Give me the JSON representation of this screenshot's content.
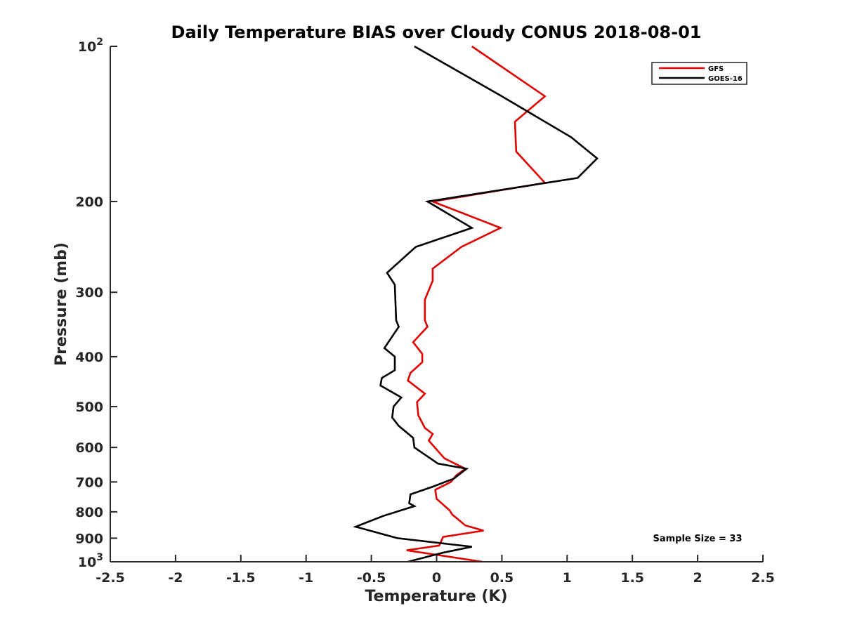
{
  "chart_data": {
    "type": "line",
    "title": "Daily Temperature BIAS over Cloudy CONUS 2018-08-01",
    "xlabel": "Temperature (K)",
    "ylabel": "Pressure (mb)",
    "xlim": [
      -2.5,
      2.5
    ],
    "ylim": [
      100,
      1000
    ],
    "y_scale": "log",
    "y_reversed": true,
    "x_ticks": [
      -2.5,
      -2,
      -1.5,
      -1,
      -0.5,
      0,
      0.5,
      1,
      1.5,
      2,
      2.5
    ],
    "x_tick_labels": [
      "-2.5",
      "-2",
      "-1.5",
      "-1",
      "-0.5",
      "0",
      "0.5",
      "1",
      "1.5",
      "2",
      "2.5"
    ],
    "y_ticks": [
      {
        "value": 100,
        "base": "10",
        "exp": "2",
        "label": ""
      },
      {
        "value": 200,
        "base": "",
        "exp": "",
        "label": "200"
      },
      {
        "value": 300,
        "base": "",
        "exp": "",
        "label": "300"
      },
      {
        "value": 400,
        "base": "",
        "exp": "",
        "label": "400"
      },
      {
        "value": 500,
        "base": "",
        "exp": "",
        "label": "500"
      },
      {
        "value": 600,
        "base": "",
        "exp": "",
        "label": "600"
      },
      {
        "value": 700,
        "base": "",
        "exp": "",
        "label": "700"
      },
      {
        "value": 800,
        "base": "",
        "exp": "",
        "label": "800"
      },
      {
        "value": 900,
        "base": "",
        "exp": "",
        "label": "900"
      },
      {
        "value": 1000,
        "base": "10",
        "exp": "3",
        "label": ""
      }
    ],
    "grid": false,
    "legend_position": "top-right",
    "series": [
      {
        "name": "GFS",
        "color": "#e00000",
        "points": [
          {
            "x": 0.27,
            "y": 100
          },
          {
            "x": 0.83,
            "y": 125
          },
          {
            "x": 0.6,
            "y": 140
          },
          {
            "x": 0.61,
            "y": 160
          },
          {
            "x": 0.83,
            "y": 184
          },
          {
            "x": -0.03,
            "y": 200
          },
          {
            "x": 0.49,
            "y": 225
          },
          {
            "x": 0.19,
            "y": 245
          },
          {
            "x": -0.03,
            "y": 270
          },
          {
            "x": -0.03,
            "y": 285
          },
          {
            "x": -0.09,
            "y": 310
          },
          {
            "x": -0.09,
            "y": 340
          },
          {
            "x": -0.07,
            "y": 350
          },
          {
            "x": -0.18,
            "y": 375
          },
          {
            "x": -0.11,
            "y": 395
          },
          {
            "x": -0.11,
            "y": 410
          },
          {
            "x": -0.2,
            "y": 430
          },
          {
            "x": -0.22,
            "y": 445
          },
          {
            "x": -0.09,
            "y": 472
          },
          {
            "x": -0.15,
            "y": 490
          },
          {
            "x": -0.14,
            "y": 520
          },
          {
            "x": -0.09,
            "y": 550
          },
          {
            "x": -0.03,
            "y": 565
          },
          {
            "x": -0.06,
            "y": 582
          },
          {
            "x": 0.06,
            "y": 630
          },
          {
            "x": 0.22,
            "y": 660
          },
          {
            "x": 0.15,
            "y": 680
          },
          {
            "x": 0.11,
            "y": 700
          },
          {
            "x": -0.01,
            "y": 725
          },
          {
            "x": 0,
            "y": 755
          },
          {
            "x": 0.1,
            "y": 795
          },
          {
            "x": 0.12,
            "y": 810
          },
          {
            "x": 0.22,
            "y": 850
          },
          {
            "x": 0.36,
            "y": 870
          },
          {
            "x": 0.05,
            "y": 895
          },
          {
            "x": 0.02,
            "y": 930
          },
          {
            "x": -0.23,
            "y": 950
          },
          {
            "x": 0.35,
            "y": 1000
          }
        ]
      },
      {
        "name": "GOES-16",
        "color": "#000000",
        "points": [
          {
            "x": -0.17,
            "y": 100
          },
          {
            "x": 0.5,
            "y": 125
          },
          {
            "x": 1.03,
            "y": 150
          },
          {
            "x": 1.23,
            "y": 165
          },
          {
            "x": 1.08,
            "y": 180
          },
          {
            "x": -0.07,
            "y": 200
          },
          {
            "x": 0.27,
            "y": 225
          },
          {
            "x": -0.16,
            "y": 245
          },
          {
            "x": -0.38,
            "y": 275
          },
          {
            "x": -0.32,
            "y": 290
          },
          {
            "x": -0.31,
            "y": 340
          },
          {
            "x": -0.29,
            "y": 350
          },
          {
            "x": -0.4,
            "y": 385
          },
          {
            "x": -0.32,
            "y": 400
          },
          {
            "x": -0.32,
            "y": 425
          },
          {
            "x": -0.42,
            "y": 440
          },
          {
            "x": -0.43,
            "y": 455
          },
          {
            "x": -0.27,
            "y": 480
          },
          {
            "x": -0.33,
            "y": 500
          },
          {
            "x": -0.34,
            "y": 525
          },
          {
            "x": -0.29,
            "y": 545
          },
          {
            "x": -0.18,
            "y": 575
          },
          {
            "x": -0.17,
            "y": 600
          },
          {
            "x": 0.01,
            "y": 645
          },
          {
            "x": 0.23,
            "y": 660
          },
          {
            "x": 0.13,
            "y": 690
          },
          {
            "x": -0.03,
            "y": 715
          },
          {
            "x": -0.2,
            "y": 740
          },
          {
            "x": -0.21,
            "y": 770
          },
          {
            "x": -0.17,
            "y": 780
          },
          {
            "x": -0.41,
            "y": 815
          },
          {
            "x": -0.62,
            "y": 855
          },
          {
            "x": -0.3,
            "y": 900
          },
          {
            "x": 0.27,
            "y": 935
          },
          {
            "x": 0.05,
            "y": 960
          },
          {
            "x": -0.22,
            "y": 1000
          }
        ]
      }
    ],
    "annotations": [
      {
        "text": "Sample Size = 33",
        "position": "bottom-right"
      }
    ]
  }
}
